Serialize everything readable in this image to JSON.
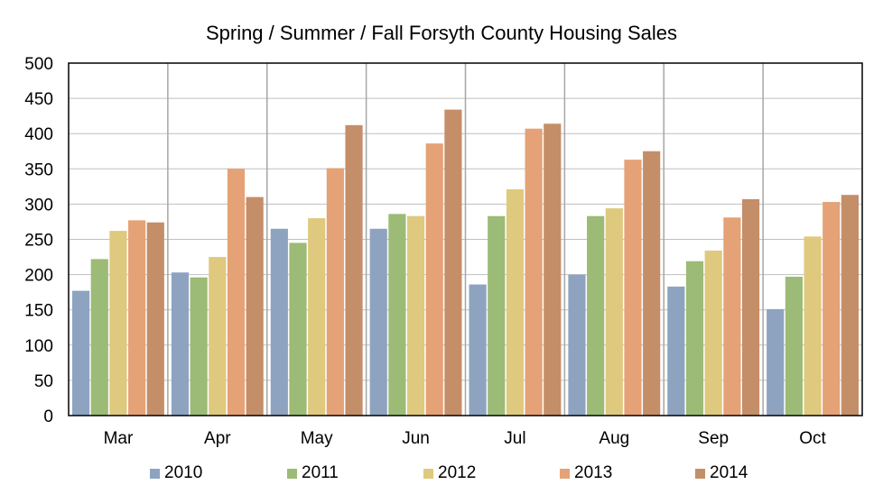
{
  "chart_data": {
    "type": "bar",
    "title": "Spring / Summer / Fall Forsyth County Housing Sales",
    "xlabel": "",
    "ylabel": "",
    "ylim": [
      0,
      500
    ],
    "yticks": [
      0,
      50,
      100,
      150,
      200,
      250,
      300,
      350,
      400,
      450,
      500
    ],
    "categories": [
      "Mar",
      "Apr",
      "May",
      "Jun",
      "Jul",
      "Aug",
      "Sep",
      "Oct"
    ],
    "series": [
      {
        "name": "2010",
        "color": "#8EA3C0",
        "values": [
          177,
          203,
          265,
          265,
          186,
          200,
          183,
          151
        ]
      },
      {
        "name": "2011",
        "color": "#9CBB76",
        "values": [
          222,
          196,
          245,
          286,
          283,
          283,
          219,
          197
        ]
      },
      {
        "name": "2012",
        "color": "#DFC97E",
        "values": [
          262,
          225,
          280,
          283,
          321,
          294,
          234,
          254
        ]
      },
      {
        "name": "2013",
        "color": "#E4A276",
        "values": [
          277,
          350,
          351,
          386,
          407,
          363,
          281,
          303
        ]
      },
      {
        "name": "2014",
        "color": "#C48E68",
        "values": [
          274,
          310,
          412,
          434,
          414,
          375,
          307,
          313
        ]
      }
    ],
    "grid": true,
    "legend_position": "bottom"
  }
}
